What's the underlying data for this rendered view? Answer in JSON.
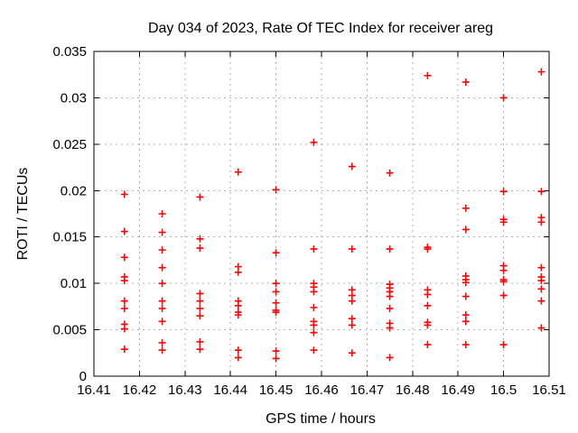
{
  "chart_data": {
    "type": "scatter",
    "title": "Day 034 of 2023, Rate Of TEC Index for receiver areg",
    "xlabel": "GPS time / hours",
    "ylabel": "ROTI / TECUs",
    "xlim": [
      16.41,
      16.51
    ],
    "ylim": [
      0,
      0.035
    ],
    "xticks": [
      16.41,
      16.42,
      16.43,
      16.44,
      16.45,
      16.46,
      16.47,
      16.48,
      16.49,
      16.5,
      16.51
    ],
    "xtick_labels": [
      "16.41",
      "16.42",
      "16.43",
      "16.44",
      "16.45",
      "16.46",
      "16.47",
      "16.48",
      "16.49",
      "16.5",
      "16.51"
    ],
    "yticks": [
      0,
      0.005,
      0.01,
      0.015,
      0.02,
      0.025,
      0.03,
      0.035
    ],
    "ytick_labels": [
      "0",
      "0.005",
      "0.01",
      "0.015",
      "0.02",
      "0.025",
      "0.03",
      "0.035"
    ],
    "grid": true,
    "legend_position": "none",
    "marker_shape": "plus",
    "series": [
      {
        "name": "ROTI",
        "points": [
          [
            16.4167,
            0.0196
          ],
          [
            16.4167,
            0.0156
          ],
          [
            16.4167,
            0.0128
          ],
          [
            16.4167,
            0.0107
          ],
          [
            16.4167,
            0.0103
          ],
          [
            16.4167,
            0.0081
          ],
          [
            16.4167,
            0.0073
          ],
          [
            16.4167,
            0.0056
          ],
          [
            16.4167,
            0.0051
          ],
          [
            16.4167,
            0.0029
          ],
          [
            16.425,
            0.0175
          ],
          [
            16.425,
            0.0155
          ],
          [
            16.425,
            0.0136
          ],
          [
            16.425,
            0.0117
          ],
          [
            16.425,
            0.01
          ],
          [
            16.425,
            0.0081
          ],
          [
            16.425,
            0.0073
          ],
          [
            16.425,
            0.0059
          ],
          [
            16.425,
            0.0036
          ],
          [
            16.425,
            0.0028
          ],
          [
            16.4333,
            0.0193
          ],
          [
            16.4333,
            0.0148
          ],
          [
            16.4333,
            0.0138
          ],
          [
            16.4333,
            0.0089
          ],
          [
            16.4333,
            0.0081
          ],
          [
            16.4333,
            0.0073
          ],
          [
            16.4333,
            0.0065
          ],
          [
            16.4333,
            0.0037
          ],
          [
            16.4333,
            0.0029
          ],
          [
            16.4417,
            0.022
          ],
          [
            16.4417,
            0.0118
          ],
          [
            16.4417,
            0.0112
          ],
          [
            16.4417,
            0.0081
          ],
          [
            16.4417,
            0.0076
          ],
          [
            16.4417,
            0.0069
          ],
          [
            16.4417,
            0.0066
          ],
          [
            16.4417,
            0.0028
          ],
          [
            16.4417,
            0.002
          ],
          [
            16.45,
            0.0201
          ],
          [
            16.45,
            0.0133
          ],
          [
            16.45,
            0.01
          ],
          [
            16.45,
            0.0091
          ],
          [
            16.45,
            0.0079
          ],
          [
            16.45,
            0.0071
          ],
          [
            16.45,
            0.0069
          ],
          [
            16.45,
            0.0027
          ],
          [
            16.45,
            0.0019
          ],
          [
            16.4583,
            0.0252
          ],
          [
            16.4583,
            0.0137
          ],
          [
            16.4583,
            0.01
          ],
          [
            16.4583,
            0.0096
          ],
          [
            16.4583,
            0.0091
          ],
          [
            16.4583,
            0.0074
          ],
          [
            16.4583,
            0.0059
          ],
          [
            16.4583,
            0.0055
          ],
          [
            16.4583,
            0.0047
          ],
          [
            16.4583,
            0.0028
          ],
          [
            16.4667,
            0.0226
          ],
          [
            16.4667,
            0.0137
          ],
          [
            16.4667,
            0.0093
          ],
          [
            16.4667,
            0.0087
          ],
          [
            16.4667,
            0.0081
          ],
          [
            16.4667,
            0.0062
          ],
          [
            16.4667,
            0.0055
          ],
          [
            16.4667,
            0.0025
          ],
          [
            16.475,
            0.0219
          ],
          [
            16.475,
            0.0137
          ],
          [
            16.475,
            0.0099
          ],
          [
            16.475,
            0.0095
          ],
          [
            16.475,
            0.0091
          ],
          [
            16.475,
            0.0086
          ],
          [
            16.475,
            0.0073
          ],
          [
            16.475,
            0.0057
          ],
          [
            16.475,
            0.0052
          ],
          [
            16.475,
            0.002
          ],
          [
            16.4833,
            0.0324
          ],
          [
            16.4833,
            0.0139
          ],
          [
            16.4833,
            0.0137
          ],
          [
            16.4833,
            0.0093
          ],
          [
            16.4833,
            0.0088
          ],
          [
            16.4833,
            0.0076
          ],
          [
            16.4833,
            0.0058
          ],
          [
            16.4833,
            0.0055
          ],
          [
            16.4833,
            0.0034
          ],
          [
            16.4917,
            0.0317
          ],
          [
            16.4917,
            0.0181
          ],
          [
            16.4917,
            0.0158
          ],
          [
            16.4917,
            0.0108
          ],
          [
            16.4917,
            0.0104
          ],
          [
            16.4917,
            0.0101
          ],
          [
            16.4917,
            0.0086
          ],
          [
            16.4917,
            0.0066
          ],
          [
            16.4917,
            0.0059
          ],
          [
            16.4917,
            0.0034
          ],
          [
            16.5,
            0.03
          ],
          [
            16.5,
            0.0199
          ],
          [
            16.5,
            0.0169
          ],
          [
            16.5,
            0.0166
          ],
          [
            16.5,
            0.0119
          ],
          [
            16.5,
            0.0114
          ],
          [
            16.5,
            0.0104
          ],
          [
            16.5,
            0.0102
          ],
          [
            16.5,
            0.0087
          ],
          [
            16.5,
            0.0034
          ],
          [
            16.5083,
            0.0328
          ],
          [
            16.5083,
            0.0199
          ],
          [
            16.5083,
            0.0171
          ],
          [
            16.5083,
            0.0166
          ],
          [
            16.5083,
            0.0117
          ],
          [
            16.5083,
            0.0107
          ],
          [
            16.5083,
            0.0103
          ],
          [
            16.5083,
            0.0094
          ],
          [
            16.5083,
            0.0081
          ],
          [
            16.5083,
            0.0052
          ]
        ]
      }
    ]
  },
  "colors": {
    "background": "#ffffff",
    "border": "#000000",
    "grid": "#b0b0b0",
    "marker": "#ff0000",
    "text": "#000000"
  }
}
